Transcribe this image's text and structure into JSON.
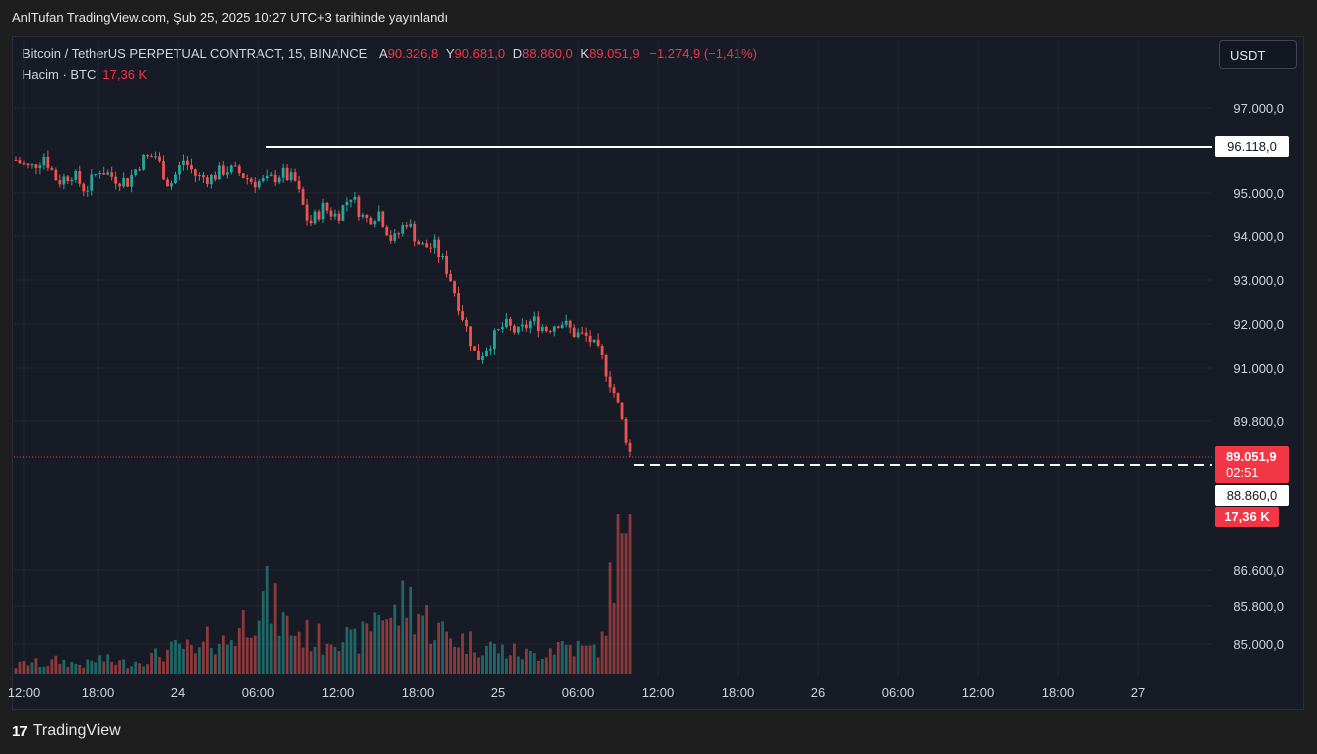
{
  "header": {
    "published": "AnlTufan TradingView.com, Şub 25, 2025 10:27 UTC+3 tarihinde yayınlandı"
  },
  "legend": {
    "symbol": "Bitcoin / TetherUS PERPETUAL CONTRACT, 15, BINANCE",
    "o_label": "A",
    "o_value": "90.326,8",
    "h_label": "Y",
    "h_value": "90.681,0",
    "l_label": "D",
    "l_value": "88.860,0",
    "c_label": "K",
    "c_value": "89.051,9",
    "change": "−1.274,9 (−1,41%)",
    "volume_label": "Hacim · BTC",
    "volume_value": "17,36 K"
  },
  "currency_button": "USDT",
  "footer": {
    "brand": "TradingView",
    "logo": "17"
  },
  "colors": {
    "up": "#26a69a",
    "down": "#ef5350",
    "background": "#171b26",
    "grid": "#232733",
    "accent": "#f23645"
  },
  "chart_data": {
    "type": "candlestick",
    "price_axis_ticks": [
      "97.000,0",
      "95.000,0",
      "94.000,0",
      "93.000,0",
      "92.000,0",
      "91.000,0",
      "89.800,0",
      "86.600,0",
      "85.800,0",
      "85.000,0"
    ],
    "time_axis_ticks": [
      "12:00",
      "18:00",
      "24",
      "06:00",
      "12:00",
      "18:00",
      "25",
      "06:00",
      "12:00",
      "18:00",
      "26",
      "06:00",
      "12:00",
      "18:00",
      "27"
    ],
    "price_labels": {
      "horizontal_line": "96.118,0",
      "last_price": "89.051,9",
      "countdown": "02:51",
      "low_line": "88.860,0",
      "volume": "17,36 K"
    },
    "price_path": [
      95.8,
      95.6,
      95.9,
      95.3,
      95.5,
      95.1,
      95.6,
      95.4,
      95.3,
      95.8,
      95.9,
      95.2,
      95.8,
      95.4,
      95.4,
      95.6,
      95.5,
      95.3,
      95.3,
      95.5,
      95.3,
      94.3,
      94.7,
      94.5,
      95.0,
      94.4,
      94.6,
      93.9,
      94.4,
      93.8,
      93.8,
      93.2,
      92.2,
      91.2,
      91.6,
      92.0,
      91.8,
      92.1,
      91.9,
      92.1,
      91.8,
      91.7,
      91.2,
      90.3,
      89.05
    ],
    "volume_path": [
      0.05,
      0.08,
      0.06,
      0.09,
      0.07,
      0.06,
      0.1,
      0.08,
      0.07,
      0.09,
      0.12,
      0.15,
      0.18,
      0.12,
      0.25,
      0.2,
      0.3,
      0.45,
      0.5,
      0.35,
      0.28,
      0.25,
      0.22,
      0.3,
      0.2,
      0.25,
      0.45,
      0.35,
      0.5,
      0.4,
      0.3,
      0.25,
      0.22,
      0.2,
      0.18,
      0.15,
      0.14,
      0.12,
      0.16,
      0.2,
      0.18,
      0.15,
      0.2,
      0.85,
      1.0
    ],
    "legend_placement": "top-left"
  }
}
